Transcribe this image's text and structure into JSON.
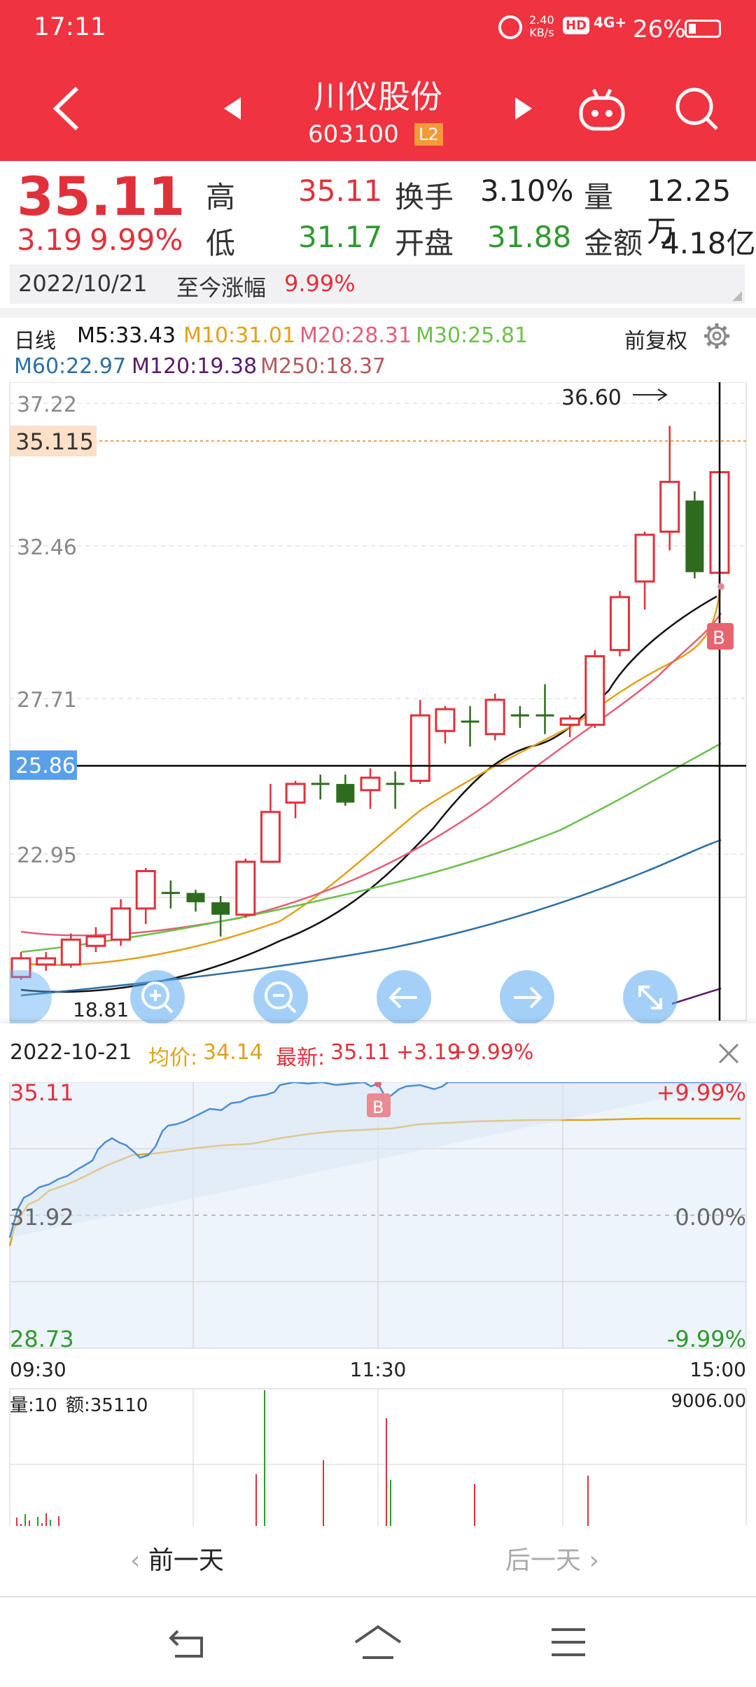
{
  "status_bar": {
    "time": "17:11",
    "net_speed_top": "2.40",
    "net_speed_bottom": "KB/s",
    "hd": "HD",
    "signal": "4G+",
    "battery": "26%"
  },
  "header": {
    "stock_name": "川仪股份",
    "stock_code": "603100",
    "level_badge": "L2"
  },
  "quote": {
    "price": "35.11",
    "change": "3.19",
    "change_pct": "9.99%",
    "high_label": "高",
    "high": "35.11",
    "low_label": "低",
    "low": "31.17",
    "turnover_label": "换手",
    "turnover": "3.10%",
    "open_label": "开盘",
    "open": "31.88",
    "volume_label": "量",
    "volume": "12.25万",
    "amount_label": "金额",
    "amount": "4.18亿",
    "date": "2022/10/21",
    "gain_label": "至今涨幅",
    "gain": "9.99%"
  },
  "kline_header": {
    "period": "日线",
    "ma5": "M5:33.43",
    "ma10": "M10:31.01",
    "ma20": "M20:28.31",
    "ma30": "M30:25.81",
    "ma60": "M60:22.97",
    "ma120": "M120:19.38",
    "ma250": "M250:18.37",
    "adjust": "前复权"
  },
  "kline_axis": {
    "y1": "37.22",
    "y2": "32.46",
    "y3": "27.71",
    "y4": "22.95",
    "current_price_tag": "35.115",
    "crosshair_tag": "25.86",
    "high_mark": "36.60",
    "low_mark": "18.81",
    "b_mark": "B"
  },
  "chart_data": {
    "type": "candlestick",
    "ylim": [
      17.5,
      38.0
    ],
    "candles": [
      {
        "o": 18.9,
        "c": 19.5,
        "h": 19.7,
        "l": 18.81,
        "dir": "up"
      },
      {
        "o": 19.3,
        "c": 19.5,
        "h": 19.7,
        "l": 19.1,
        "dir": "up"
      },
      {
        "o": 19.3,
        "c": 20.1,
        "h": 20.3,
        "l": 19.2,
        "dir": "up"
      },
      {
        "o": 19.9,
        "c": 20.2,
        "h": 20.5,
        "l": 19.7,
        "dir": "up"
      },
      {
        "o": 20.1,
        "c": 21.1,
        "h": 21.4,
        "l": 19.9,
        "dir": "up"
      },
      {
        "o": 21.1,
        "c": 22.3,
        "h": 22.4,
        "l": 20.6,
        "dir": "up"
      },
      {
        "o": 21.6,
        "c": 21.6,
        "h": 22.0,
        "l": 21.1,
        "dir": "doji"
      },
      {
        "o": 21.6,
        "c": 21.3,
        "h": 21.7,
        "l": 21.0,
        "dir": "down"
      },
      {
        "o": 21.3,
        "c": 20.9,
        "h": 21.5,
        "l": 20.2,
        "dir": "down"
      },
      {
        "o": 20.9,
        "c": 22.6,
        "h": 22.7,
        "l": 20.8,
        "dir": "up"
      },
      {
        "o": 22.6,
        "c": 24.2,
        "h": 25.1,
        "l": 22.6,
        "dir": "up"
      },
      {
        "o": 24.5,
        "c": 25.1,
        "h": 25.2,
        "l": 24.0,
        "dir": "up"
      },
      {
        "o": 25.1,
        "c": 25.1,
        "h": 25.4,
        "l": 24.6,
        "dir": "doji"
      },
      {
        "o": 25.1,
        "c": 24.5,
        "h": 25.4,
        "l": 24.4,
        "dir": "down"
      },
      {
        "o": 24.9,
        "c": 25.3,
        "h": 25.6,
        "l": 24.3,
        "dir": "up"
      },
      {
        "o": 25.1,
        "c": 25.1,
        "h": 25.5,
        "l": 24.3,
        "dir": "doji"
      },
      {
        "o": 25.2,
        "c": 27.3,
        "h": 27.8,
        "l": 25.1,
        "dir": "up"
      },
      {
        "o": 26.8,
        "c": 27.5,
        "h": 27.6,
        "l": 26.4,
        "dir": "up"
      },
      {
        "o": 27.1,
        "c": 27.1,
        "h": 27.6,
        "l": 26.3,
        "dir": "doji"
      },
      {
        "o": 26.7,
        "c": 27.8,
        "h": 28.0,
        "l": 26.5,
        "dir": "up"
      },
      {
        "o": 27.3,
        "c": 27.3,
        "h": 27.6,
        "l": 26.9,
        "dir": "doji"
      },
      {
        "o": 26.9,
        "c": 27.3,
        "h": 28.3,
        "l": 26.7,
        "dir": "doji"
      },
      {
        "o": 27.0,
        "c": 27.2,
        "h": 27.3,
        "l": 26.6,
        "dir": "up"
      },
      {
        "o": 27.0,
        "c": 29.2,
        "h": 29.4,
        "l": 26.9,
        "dir": "up"
      },
      {
        "o": 29.4,
        "c": 31.1,
        "h": 31.3,
        "l": 29.2,
        "dir": "up"
      },
      {
        "o": 31.6,
        "c": 33.1,
        "h": 33.2,
        "l": 30.7,
        "dir": "up"
      },
      {
        "o": 33.2,
        "c": 34.8,
        "h": 36.6,
        "l": 32.6,
        "dir": "up"
      },
      {
        "o": 34.2,
        "c": 31.9,
        "h": 34.5,
        "l": 31.7,
        "dir": "down"
      },
      {
        "o": 31.88,
        "c": 35.11,
        "h": 35.11,
        "l": 31.17,
        "dir": "up"
      }
    ]
  },
  "zoom_controls": {
    "zoom_in": "+",
    "zoom_out": "−",
    "left": "←",
    "right": "→",
    "expand": "⤡"
  },
  "intraday": {
    "date": "2022-10-21",
    "avg_label": "均价:",
    "avg": "34.14",
    "latest_label": "最新:",
    "latest": "35.11",
    "latest_change": "+3.19",
    "latest_pct": "+9.99%",
    "price_top": "35.11",
    "price_mid": "31.92",
    "price_bottom": "28.73",
    "pct_top": "+9.99%",
    "pct_mid": "0.00%",
    "pct_bottom": "-9.99%",
    "time_start": "09:30",
    "time_mid": "11:30",
    "time_end": "15:00",
    "b_mark": "B",
    "volume_label": "量:10",
    "amount_label": "额:35110",
    "volume_max": "9006.00"
  },
  "day_nav": {
    "prev": "前一天",
    "next": "后一天"
  },
  "colors": {
    "brand_red": "#ef3340",
    "up_red": "#e0313b",
    "down_green": "#2f6b1e",
    "ma5": "#111111",
    "ma10": "#e0a21a",
    "ma20": "#e0607a",
    "ma30": "#6cc04a",
    "ma60": "#2d6fa3",
    "ma120": "#5b1a6b"
  }
}
